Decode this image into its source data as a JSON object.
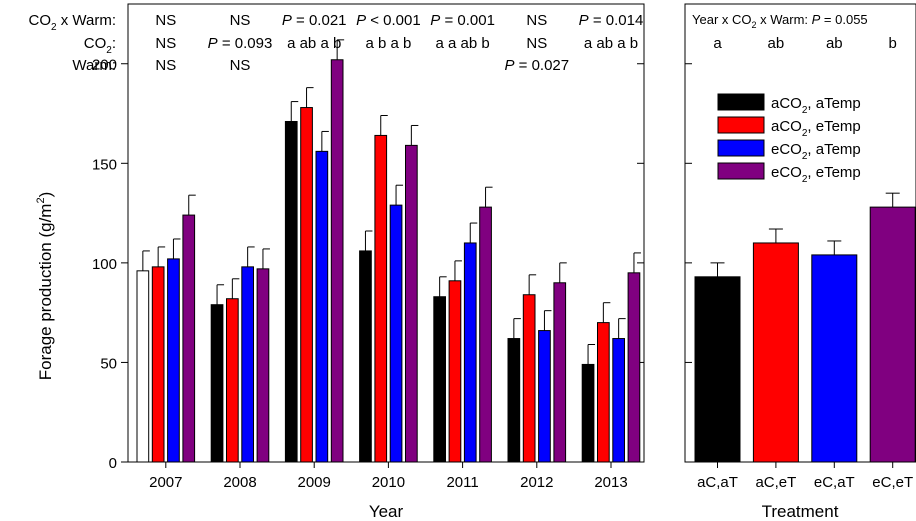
{
  "chart_data": [
    {
      "type": "bar",
      "xlabel": "Year",
      "ylabel": "Forage production (g/m",
      "ylabel_sup": "2",
      "ylabel_close": ")",
      "ylim": [
        0,
        230
      ],
      "yticks": [
        0,
        50,
        100,
        150,
        200
      ],
      "categories": [
        "2007",
        "2008",
        "2009",
        "2010",
        "2011",
        "2012",
        "2013"
      ],
      "series": [
        {
          "name": "aCO2, aTemp",
          "color": "#000000",
          "values": [
            96,
            79,
            171,
            106,
            83,
            62,
            49
          ],
          "errors": [
            10,
            10,
            10,
            10,
            10,
            10,
            10
          ],
          "first_bar_hollow": true
        },
        {
          "name": "aCO2, eTemp",
          "color": "#ff0000",
          "values": [
            98,
            82,
            178,
            164,
            91,
            84,
            70
          ],
          "errors": [
            10,
            10,
            10,
            10,
            10,
            10,
            10
          ]
        },
        {
          "name": "eCO2, aTemp",
          "color": "#0000ff",
          "values": [
            102,
            98,
            156,
            129,
            110,
            66,
            62
          ],
          "errors": [
            10,
            10,
            10,
            10,
            10,
            10,
            10
          ]
        },
        {
          "name": "eCO2, eTemp",
          "color": "#800080",
          "values": [
            124,
            97,
            202,
            159,
            128,
            90,
            95
          ],
          "errors": [
            10,
            10,
            10,
            10,
            10,
            10,
            10
          ]
        }
      ],
      "stat_rows": [
        {
          "label": "CO2 x Warm:",
          "label_parts": [
            "CO",
            "2",
            " x Warm:"
          ],
          "cells": [
            "NS",
            "NS",
            "P = 0.021",
            "P < 0.001",
            "P = 0.001",
            "NS",
            "P = 0.014"
          ]
        },
        {
          "label": "CO2:",
          "label_parts": [
            "CO",
            "2",
            ":"
          ],
          "cells": [
            "NS",
            "P = 0.093",
            "a ab a b",
            "a b a b",
            "a a ab b",
            "NS",
            "a ab a b"
          ]
        },
        {
          "label": "Warm:",
          "label_parts": [
            "Warm:",
            "",
            ""
          ],
          "cells": [
            "NS",
            "NS",
            "",
            "",
            "",
            "P = 0.027",
            ""
          ]
        }
      ]
    },
    {
      "type": "bar",
      "xlabel": "Treatment",
      "ylim": [
        0,
        230
      ],
      "categories": [
        "aC,aT",
        "aC,eT",
        "eC,aT",
        "eC,eT"
      ],
      "values": [
        93,
        110,
        104,
        128
      ],
      "errors": [
        7,
        7,
        7,
        7
      ],
      "colors": [
        "#000000",
        "#ff0000",
        "#0000ff",
        "#800080"
      ],
      "stat_header": "Year x CO2 x Warm: P = 0.055",
      "stat_header_parts": [
        "Year x CO",
        "2",
        " x Warm: ",
        "P",
        " = 0.055"
      ],
      "letters": [
        "a",
        "ab",
        "ab",
        "b"
      ],
      "legend_position": "top-right",
      "legend": [
        {
          "label": "aCO2, aTemp",
          "parts": [
            "aCO",
            "2",
            ", aTemp"
          ],
          "color": "#000000"
        },
        {
          "label": "aCO2, eTemp",
          "parts": [
            "aCO",
            "2",
            ", eTemp"
          ],
          "color": "#ff0000"
        },
        {
          "label": "eCO2, aTemp",
          "parts": [
            "eCO",
            "2",
            ", aTemp"
          ],
          "color": "#0000ff"
        },
        {
          "label": "eCO2, eTemp",
          "parts": [
            "eCO",
            "2",
            ", eTemp"
          ],
          "color": "#800080"
        }
      ]
    }
  ]
}
